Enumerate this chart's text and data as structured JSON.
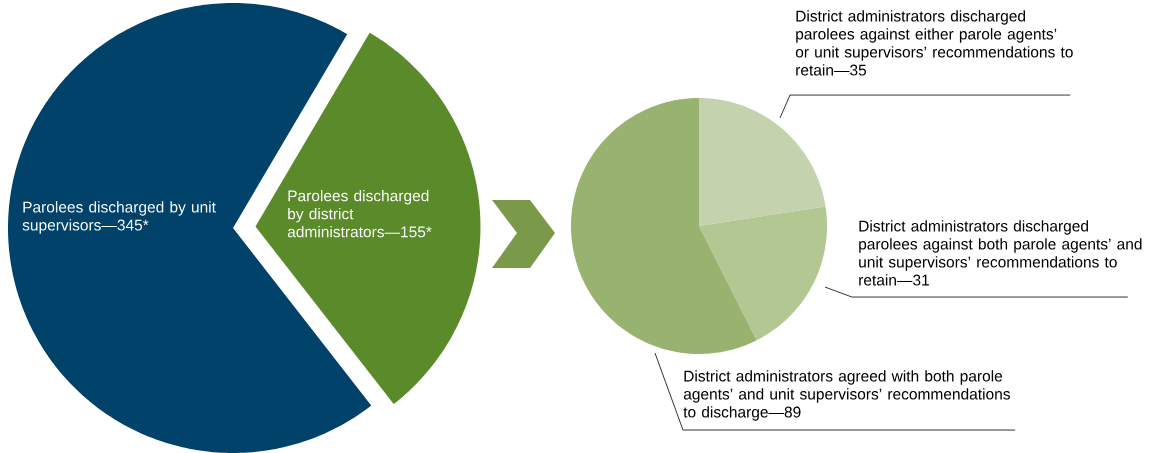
{
  "chart_data": [
    {
      "type": "pie",
      "categories": [
        "Parolees discharged by unit supervisors—345*",
        "Parolees discharged by district administrators—155*"
      ],
      "values": [
        345,
        155
      ],
      "colors": [
        "#01426a",
        "#5b8a2a"
      ]
    },
    {
      "type": "pie",
      "categories": [
        "District administrators discharged parolees against either parole agents’ or unit supervisors’ recommendations to retain—35",
        "District administrators discharged parolees against both parole agents’ and unit supervisors’ recommendations to retain—31",
        "District administrators agreed with both parole agents’ and unit supervisors’ recommendations to discharge—89"
      ],
      "values": [
        35,
        31,
        89
      ],
      "colors": [
        "#c4d3ae",
        "#b2c792",
        "#98b26f"
      ]
    }
  ]
}
